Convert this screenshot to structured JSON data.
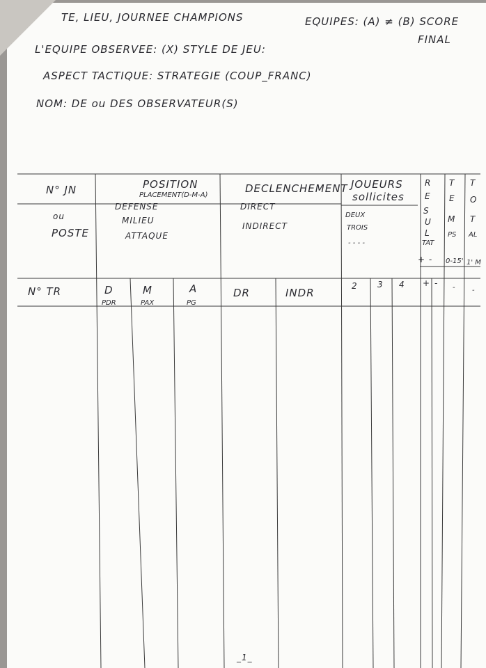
{
  "header": {
    "line1": "TE, LIEU, JOURNEE CHAMPIONS",
    "teams": "EQUIPES: (A) ≠ (B) SCORE",
    "final": "FINAL",
    "line2": "L'EQUIPE OBSERVEE: (X) STYLE DE JEU:",
    "line3": "ASPECT TACTIQUE: STRATEGIE (COUP_FRANC)",
    "line4": "NOM: DE ou DES OBSERVATEUR(S)"
  },
  "table": {
    "col1": [
      "N° JN",
      "ou",
      "POSTE"
    ],
    "position": {
      "title": "POSITION",
      "sub": "PLACEMENT(D-M-A)",
      "items": [
        "DEFENSE",
        "MILIEU",
        "ATTAQUE"
      ]
    },
    "declenchement": {
      "title": "DECLENCHEMENT",
      "items": [
        "DIRECT",
        "INDIRECT"
      ]
    },
    "joueurs": {
      "title": "JOUEURS",
      "sub": "sollicites",
      "items": [
        "DEUX",
        "TROIS",
        "- - - -"
      ]
    },
    "resultat": {
      "letters": [
        "R",
        "E",
        "S",
        "U",
        "L",
        "TAT"
      ],
      "signs": "+   -"
    },
    "temps": {
      "letters": [
        "T",
        "E",
        "M",
        "PS"
      ],
      "range": "0-15'"
    },
    "total": {
      "letters": [
        "T",
        "O",
        "T",
        "AL"
      ],
      "range": "1' M"
    },
    "subheaders": [
      "N° TR",
      "D",
      "PDR",
      "M",
      "PAX",
      "A",
      "PG",
      "DR",
      "INDR",
      "2",
      "3",
      "4",
      "+",
      "-",
      "-",
      "-"
    ],
    "footer_mark": "_1_"
  }
}
